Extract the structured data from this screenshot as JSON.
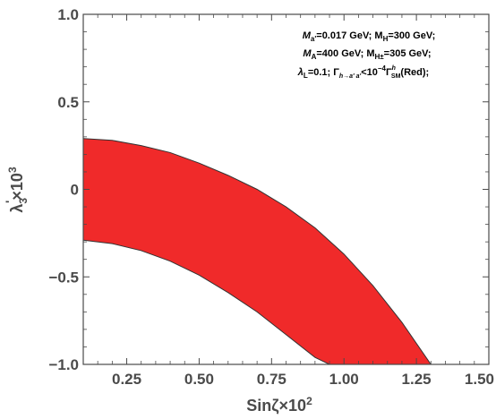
{
  "chart_data": {
    "type": "area",
    "xlabel_main": "Sinζ×10",
    "xlabel_sup": "2",
    "ylabel_main": "λ",
    "ylabel_sub": "3",
    "ylabel_prime": "'",
    "ylabel_tail": "×10",
    "ylabel_sup": "3",
    "xlim": [
      0.1,
      1.5
    ],
    "ylim": [
      -1.0,
      1.0
    ],
    "xticks": [
      0.25,
      0.5,
      0.75,
      1.0,
      1.25,
      1.5
    ],
    "xtick_labels": [
      "0.25",
      "0.50",
      "0.75",
      "1.00",
      "1.25",
      "1.50"
    ],
    "yticks": [
      -1.0,
      -0.5,
      0,
      0.5,
      1.0
    ],
    "ytick_labels": [
      "−1.0",
      "−0.5",
      "0",
      "0.5",
      "1.0"
    ],
    "grid": false,
    "fill_color": "#f02a2a",
    "edge_color": "#333333",
    "region": {
      "name": "Red",
      "upper": {
        "x": [
          0.1,
          0.2,
          0.3,
          0.4,
          0.5,
          0.6,
          0.7,
          0.8,
          0.9,
          1.0,
          1.1,
          1.2,
          1.3
        ],
        "y": [
          0.29,
          0.28,
          0.25,
          0.21,
          0.15,
          0.08,
          0.0,
          -0.1,
          -0.22,
          -0.37,
          -0.55,
          -0.76,
          -1.0
        ]
      },
      "lower": {
        "x": [
          0.1,
          0.2,
          0.3,
          0.4,
          0.5,
          0.6,
          0.7,
          0.8,
          0.9,
          0.95
        ],
        "y": [
          -0.29,
          -0.31,
          -0.35,
          -0.41,
          -0.49,
          -0.59,
          -0.7,
          -0.83,
          -0.96,
          -1.0
        ]
      }
    },
    "annotation": {
      "line1": "M",
      "line1_a": "a'",
      "line1_b": "=0.017 GeV; M",
      "line1_c": "H",
      "line1_d": "=300 GeV;",
      "line2": "M",
      "line2_a": "A",
      "line2_b": "=400 GeV; M",
      "line2_c": "H±",
      "line2_d": "=305 GeV;",
      "line3": "λ",
      "line3_a": "L",
      "line3_b": "=0.1; Γ",
      "line3_c": "h→a' a'",
      "line3_d": "<10",
      "line3_e": "−4",
      "line3_f": "Γ",
      "line3_g": "SM",
      "line3_g_sup": "h",
      "line3_h": "(Red);"
    }
  }
}
